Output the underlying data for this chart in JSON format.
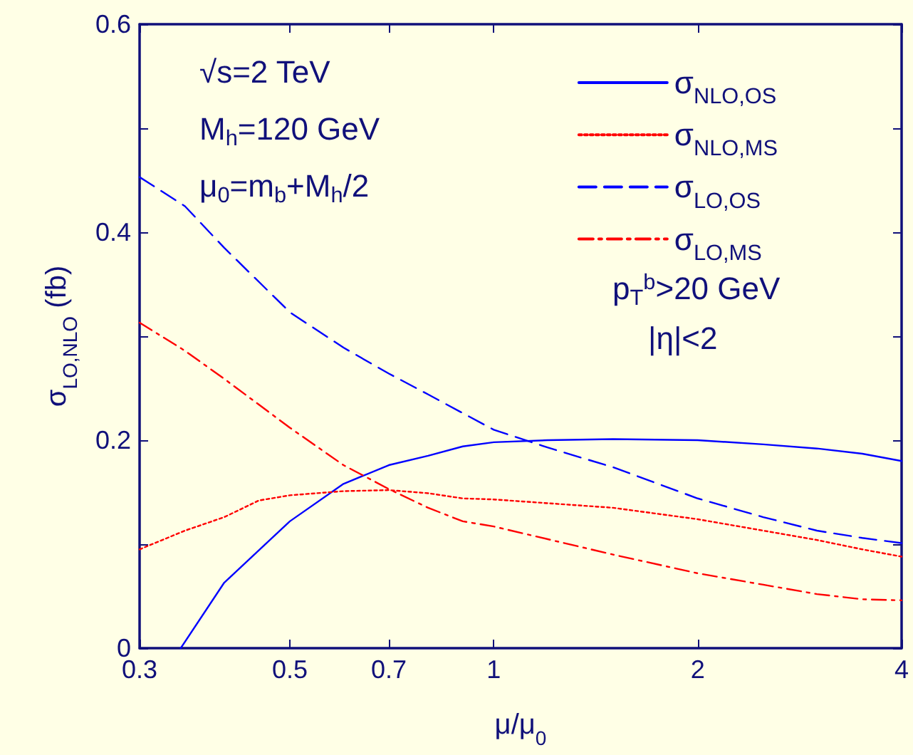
{
  "chart_data": {
    "type": "line",
    "xlabel": "μ/μ$_{0}$",
    "ylabel": "σ$_{LO,NLO}$ (fb)",
    "log": "x",
    "xlim": [
      0.3,
      4
    ],
    "xticks": [
      0.3,
      0.5,
      0.7,
      1,
      2,
      4
    ],
    "ylim": [
      0,
      0.6
    ],
    "yticks": [
      0,
      {
        "value": 0.1,
        "label": null
      },
      0.2,
      {
        "value": 0.3,
        "label": null
      },
      0.4,
      {
        "value": 0.5,
        "label": null
      },
      0.6
    ],
    "grid": false,
    "legend": "top right",
    "marker": "none",
    "annotations": [
      "√s=2 TeV",
      "M$_{h}$=120 GeV",
      "μ$_{0}$=m$_{b}$+M$_{h}$/2",
      "p$_{T}$$^{b}$>20 GeV",
      "|η|<2"
    ],
    "series": [
      {
        "name": "σ$_{NLO,OS}$",
        "color": "#0000ff",
        "line_style": "solid",
        "x": [
          0.345,
          0.4,
          0.5,
          0.6,
          0.7,
          0.8,
          0.9,
          1.0,
          1.2,
          1.5,
          2,
          2.5,
          3,
          3.5,
          4
        ],
        "values": [
          0,
          0.063,
          0.122,
          0.158,
          0.176,
          0.185,
          0.194,
          0.198,
          0.2,
          0.201,
          0.2,
          0.196,
          0.192,
          0.187,
          0.18
        ]
      },
      {
        "name": "σ$_{NLO,MS}$",
        "color": "#ff0000",
        "line_style": "dotted",
        "x": [
          0.3,
          0.35,
          0.4,
          0.45,
          0.5,
          0.6,
          0.7,
          0.8,
          0.9,
          1.0,
          1.5,
          2,
          2.5,
          3,
          3.5,
          4
        ],
        "values": [
          0.095,
          0.113,
          0.126,
          0.142,
          0.147,
          0.151,
          0.152,
          0.149,
          0.144,
          0.143,
          0.135,
          0.124,
          0.113,
          0.104,
          0.095,
          0.088
        ]
      },
      {
        "name": "σ$_{LO,OS}$",
        "color": "#0000ff",
        "line_style": "dashed",
        "x": [
          0.3,
          0.35,
          0.4,
          0.5,
          0.6,
          0.7,
          0.8,
          0.9,
          1.0,
          1.2,
          1.5,
          2,
          2.5,
          3,
          3.5,
          4
        ],
        "values": [
          0.453,
          0.425,
          0.385,
          0.323,
          0.289,
          0.264,
          0.244,
          0.226,
          0.21,
          0.193,
          0.174,
          0.144,
          0.126,
          0.113,
          0.106,
          0.101
        ]
      },
      {
        "name": "σ$_{LO,MS}$",
        "color": "#ff0000",
        "line_style": "dashdot",
        "x": [
          0.3,
          0.35,
          0.4,
          0.5,
          0.6,
          0.7,
          0.8,
          0.9,
          1.0,
          1.5,
          2,
          2.5,
          3,
          3.5,
          4
        ],
        "values": [
          0.313,
          0.286,
          0.259,
          0.212,
          0.176,
          0.153,
          0.135,
          0.122,
          0.117,
          0.09,
          0.072,
          0.061,
          0.052,
          0.047,
          0.046
        ]
      }
    ]
  }
}
